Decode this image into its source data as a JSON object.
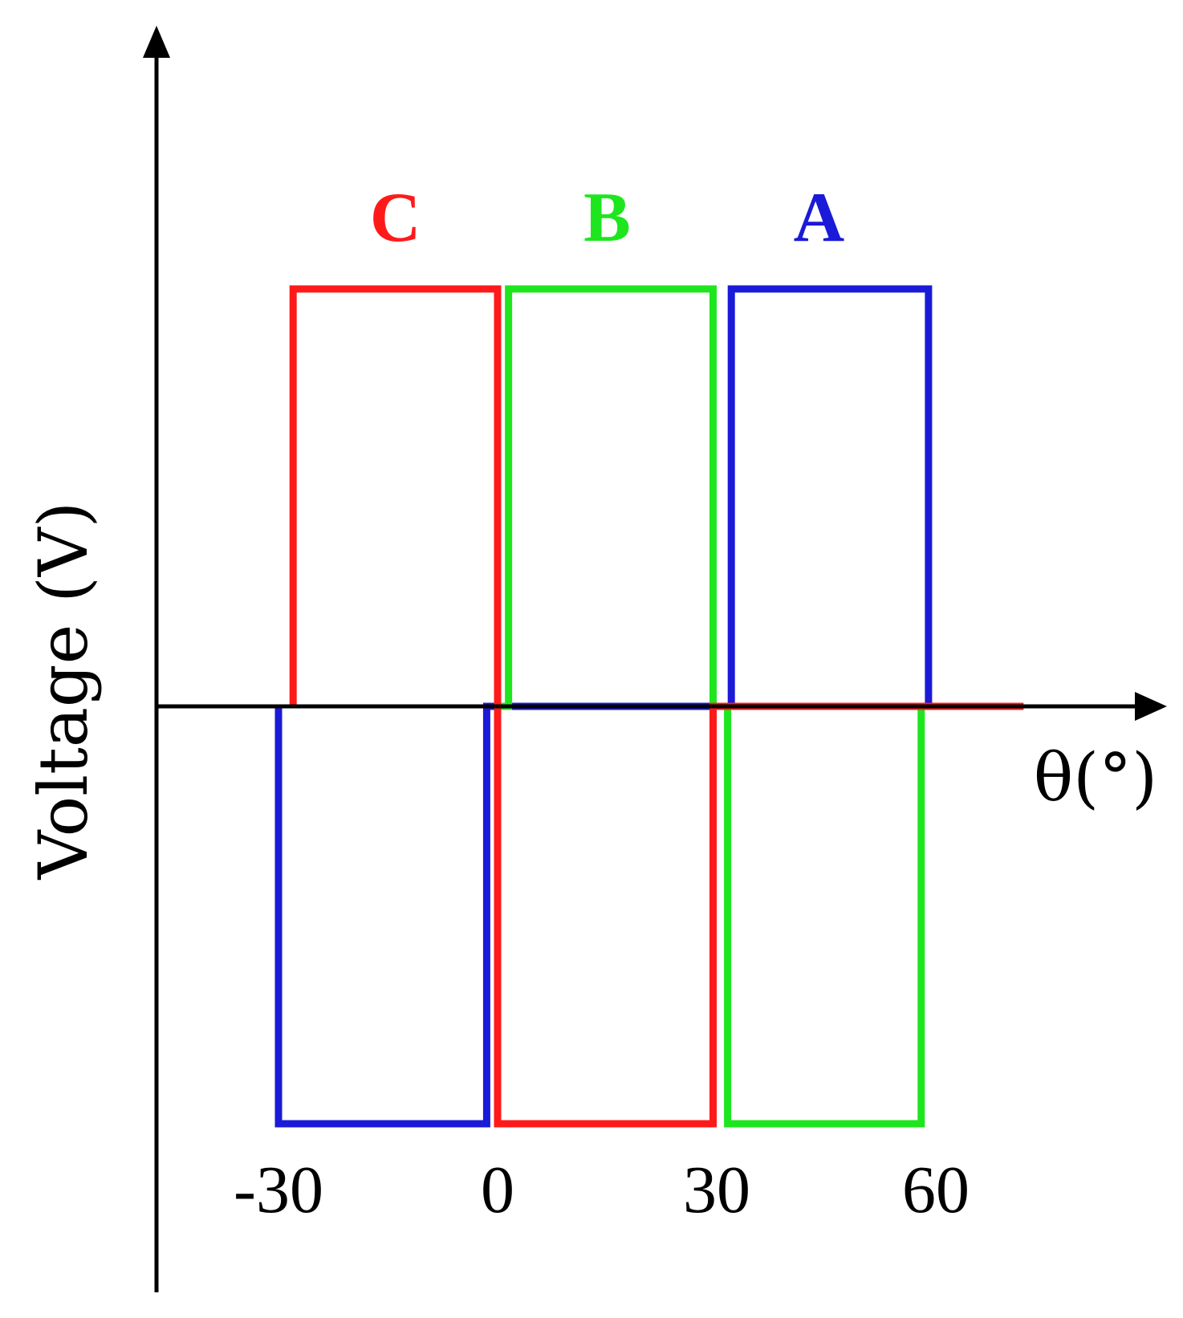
{
  "chart_data": {
    "type": "line",
    "title": "",
    "xlabel": "θ(°)",
    "ylabel": "Voltage (V)",
    "x_ticks": [
      "-30",
      "0",
      "30",
      "60"
    ],
    "x_tick_values": [
      -30,
      0,
      30,
      60
    ],
    "xlim": [
      -47,
      91
    ],
    "ylim": [
      -1.12,
      1.62
    ],
    "grid": false,
    "legend": "none",
    "series": [
      {
        "name": "A",
        "color": "#1a1ad8",
        "x": [
          -30,
          -30,
          -1.5,
          -1.5,
          0,
          32,
          32,
          59,
          59,
          72
        ],
        "y": [
          0,
          -1,
          -1,
          0,
          0,
          0,
          1,
          1,
          0,
          0
        ]
      },
      {
        "name": "B",
        "color": "#1ee61e",
        "x": [
          0,
          1.5,
          1.5,
          29.5,
          29.5,
          31.5,
          31.5,
          58,
          58,
          72
        ],
        "y": [
          0,
          0,
          1,
          1,
          0,
          0,
          -1,
          -1,
          0,
          0
        ]
      },
      {
        "name": "C",
        "color": "#ff1a1a",
        "x": [
          -28,
          -28,
          0,
          0,
          0,
          29.5,
          29.5,
          59,
          72
        ],
        "y": [
          0,
          1,
          1,
          0,
          -1,
          -1,
          0,
          0,
          0
        ]
      }
    ],
    "series_labels": [
      {
        "text": "C",
        "x": -14,
        "color": "#ff1a1a"
      },
      {
        "text": "B",
        "x": 15,
        "color": "#1ee61e"
      },
      {
        "text": "A",
        "x": 44,
        "color": "#1a1ad8"
      }
    ]
  }
}
